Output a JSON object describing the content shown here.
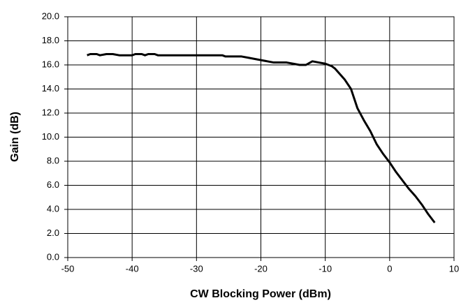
{
  "chart_data": {
    "type": "line",
    "x_label": "CW Blocking Power (dBm)",
    "y_label": "Gain (dB)",
    "x": [
      -47,
      -46.5,
      -45.5,
      -45,
      -44,
      -43,
      -42,
      -40,
      -39.5,
      -38.5,
      -38,
      -37.5,
      -36.5,
      -36,
      -30,
      -26,
      -25.5,
      -23,
      -22,
      -20,
      -18,
      -16,
      -15,
      -14,
      -13,
      -12,
      -11,
      -10,
      -9,
      -8.5,
      -7,
      -6,
      -5,
      -4,
      -3,
      -2,
      -1,
      0,
      1,
      2,
      3,
      4,
      5,
      6,
      7
    ],
    "values": [
      16.8,
      16.9,
      16.9,
      16.8,
      16.9,
      16.9,
      16.8,
      16.8,
      16.9,
      16.9,
      16.8,
      16.9,
      16.9,
      16.8,
      16.8,
      16.8,
      16.7,
      16.7,
      16.6,
      16.4,
      16.2,
      16.2,
      16.1,
      16.0,
      16.0,
      16.3,
      16.2,
      16.1,
      15.9,
      15.7,
      14.8,
      14.0,
      12.4,
      11.4,
      10.5,
      9.4,
      8.6,
      7.9,
      7.1,
      6.4,
      5.7,
      5.1,
      4.4,
      3.6,
      2.9
    ],
    "color": "#000000",
    "xlim": [
      -50,
      10
    ],
    "xticks": [
      -50,
      -40,
      -30,
      -20,
      -10,
      0,
      10
    ],
    "ylim": [
      0,
      20
    ],
    "yticks": [
      {
        "value": 0,
        "label": "0.0"
      },
      {
        "value": 2,
        "label": "2.0"
      },
      {
        "value": 4,
        "label": "4.0"
      },
      {
        "value": 6,
        "label": "6.0"
      },
      {
        "value": 8,
        "label": "8.0"
      },
      {
        "value": 10,
        "label": "10.0"
      },
      {
        "value": 12,
        "label": "12.0"
      },
      {
        "value": 14,
        "label": "14.0"
      },
      {
        "value": 16,
        "label": "16.0"
      },
      {
        "value": 18,
        "label": "18.0"
      },
      {
        "value": 20,
        "label": "20.0"
      }
    ],
    "grid": true
  }
}
